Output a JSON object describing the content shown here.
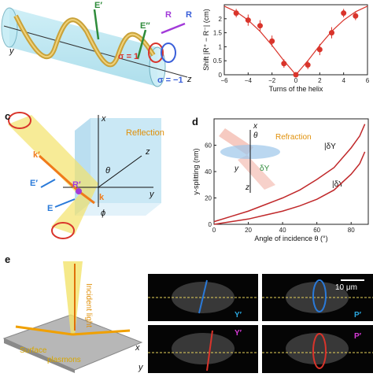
{
  "panels": {
    "a": {
      "labels": {
        "E1": "E′",
        "E2": "E″",
        "Rplus": "R",
        "Rminus": "R",
        "sigma_pos": "σ = 1",
        "sigma_neg": "σ = −1",
        "y": "y",
        "z": "z"
      }
    },
    "c": {
      "letter": "c",
      "labels": {
        "reflection": "Reflection",
        "x": "x",
        "z": "z",
        "y": "y",
        "k1": "k′",
        "E1": "E′",
        "R1": "R′",
        "k": "k",
        "E": "E",
        "theta": "θ",
        "phi": "ϕ"
      }
    },
    "d": {
      "letter": "d",
      "labels": {
        "refraction": "Refraction",
        "theta": "θ",
        "x": "x",
        "y": "y",
        "z": "z",
        "dY": "δY",
        "dYh": "|δY",
        "dYv": "|δY"
      }
    },
    "e": {
      "letter": "e",
      "labels": {
        "incident": "Incident light",
        "surface": "Surface",
        "plasmons": "plasmons",
        "x": "x",
        "y": "y",
        "scalebar": "10 μm",
        "Y1": "Y′",
        "P1": "P′",
        "Y1b": "Y′",
        "P1b": "P′"
      }
    }
  },
  "chart_data": [
    {
      "type": "scatter",
      "ylabel": "Shift |R⁺ − R⁻| (cm)",
      "xlabel": "Turns of the helix",
      "xlim": [
        -6,
        6
      ],
      "ylim": [
        0,
        2.5
      ],
      "xticks": [
        -6,
        -4,
        -2,
        0,
        2,
        4,
        6
      ],
      "yticks": [
        0,
        0.5,
        1,
        1.5,
        2
      ],
      "series": [
        {
          "x": [
            -5,
            -4,
            -3,
            -2,
            -1,
            0,
            1,
            2,
            3,
            4,
            5
          ],
          "y": [
            2.2,
            1.95,
            1.75,
            1.2,
            0.4,
            0.0,
            0.35,
            0.9,
            1.5,
            2.2,
            2.1
          ],
          "err": [
            0.15,
            0.2,
            0.2,
            0.2,
            0.15,
            0.1,
            0.15,
            0.2,
            0.2,
            0.15,
            0.15
          ]
        }
      ],
      "fit": {
        "x": [
          -6,
          -5,
          -4,
          -3,
          -2,
          -1,
          0,
          1,
          2,
          3,
          4,
          5,
          6
        ],
        "y": [
          2.45,
          2.25,
          1.95,
          1.55,
          1.05,
          0.5,
          0.0,
          0.5,
          1.05,
          1.55,
          1.95,
          2.25,
          2.45
        ]
      },
      "color": "#d9342b"
    },
    {
      "type": "line",
      "ylabel": "y-splitting (nm)",
      "xlabel": "Angle of incidence θ (°)",
      "xlim": [
        0,
        90
      ],
      "ylim": [
        0,
        80
      ],
      "xticks": [
        0,
        20,
        40,
        60,
        80
      ],
      "yticks": [
        0,
        20,
        40,
        60
      ],
      "series": [
        {
          "label": "|δY",
          "x": [
            0,
            10,
            20,
            30,
            40,
            50,
            60,
            70,
            80,
            85,
            88
          ],
          "y": [
            2,
            6,
            10,
            15,
            20,
            26,
            34,
            43,
            58,
            67,
            76
          ]
        },
        {
          "label": "|δY",
          "x": [
            0,
            10,
            20,
            30,
            40,
            50,
            60,
            70,
            80,
            85,
            88
          ],
          "y": [
            0,
            2,
            4,
            7,
            10,
            14,
            19,
            26,
            38,
            46,
            55
          ]
        }
      ],
      "color": "#c0282a"
    }
  ]
}
